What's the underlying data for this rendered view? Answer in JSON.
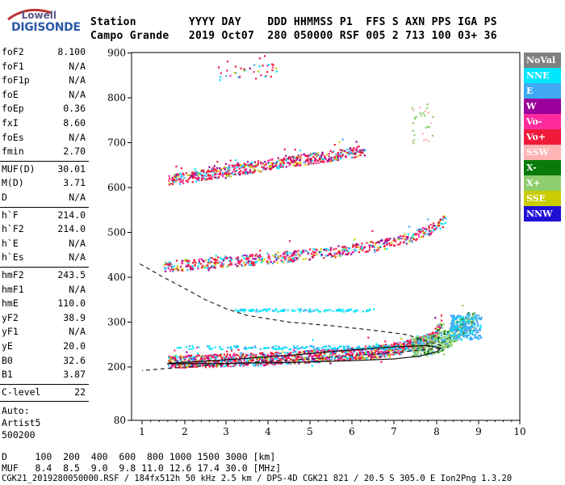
{
  "logo": {
    "brand": "Lowell",
    "product": "DIGISONDE"
  },
  "header": {
    "line1": "Station        YYYY DAY    DDD HHMMSS P1  FFS S AXN PPS IGA PS",
    "line2": "Campo Grande   2019 Oct07  280 050000 RSF 005 2 713 100 03+ 36"
  },
  "params": {
    "group1": [
      {
        "label": "foF2",
        "value": "8.100"
      },
      {
        "label": "foF1",
        "value": "N/A"
      },
      {
        "label": "foF1p",
        "value": "N/A"
      },
      {
        "label": "foE",
        "value": "N/A"
      },
      {
        "label": "foEp",
        "value": "0.36"
      },
      {
        "label": "fxI",
        "value": "8.60"
      },
      {
        "label": "foEs",
        "value": "N/A"
      },
      {
        "label": "fmin",
        "value": "2.70"
      }
    ],
    "group2": [
      {
        "label": "MUF(D)",
        "value": "30.01"
      },
      {
        "label": "M(D)",
        "value": "3.71"
      },
      {
        "label": "D",
        "value": "N/A"
      }
    ],
    "group3": [
      {
        "label": "h`F",
        "value": "214.0"
      },
      {
        "label": "h`F2",
        "value": "214.0"
      },
      {
        "label": "h`E",
        "value": "N/A"
      },
      {
        "label": "h`Es",
        "value": "N/A"
      }
    ],
    "group4": [
      {
        "label": "hmF2",
        "value": "243.5"
      },
      {
        "label": "hmF1",
        "value": "N/A"
      },
      {
        "label": "hmE",
        "value": "110.0"
      },
      {
        "label": "yF2",
        "value": "38.9"
      },
      {
        "label": "yF1",
        "value": "N/A"
      },
      {
        "label": "yE",
        "value": "20.0"
      },
      {
        "label": "B0",
        "value": "32.6"
      },
      {
        "label": "B1",
        "value": "3.87"
      }
    ],
    "clevel": {
      "label": "C-level",
      "value": "22"
    },
    "auto": [
      "Auto:",
      "Artist5",
      "500200"
    ]
  },
  "legend": [
    {
      "label": "NoVal",
      "bg": "#808080",
      "fg": "#ffffff"
    },
    {
      "label": "NNE",
      "bg": "#00e6ff",
      "fg": "#ffffff"
    },
    {
      "label": "E",
      "bg": "#3fa9f5",
      "fg": "#ffffff"
    },
    {
      "label": "W",
      "bg": "#9c009c",
      "fg": "#ffffff"
    },
    {
      "label": "Vo-",
      "bg": "#ff2a9d",
      "fg": "#ffffff"
    },
    {
      "label": "Vo+",
      "bg": "#f01b3a",
      "fg": "#ffffff"
    },
    {
      "label": "SSW",
      "bg": "#ffb3b3",
      "fg": "#ffffff"
    },
    {
      "label": "X-",
      "bg": "#0a7a0a",
      "fg": "#ffffff"
    },
    {
      "label": "X+",
      "bg": "#8fce6e",
      "fg": "#ffffff"
    },
    {
      "label": "SSE",
      "bg": "#c8cc00",
      "fg": "#ffffff"
    },
    {
      "label": "NNW",
      "bg": "#1f10d6",
      "fg": "#ffffff"
    }
  ],
  "chart_data": {
    "type": "scatter",
    "title": "",
    "xlabel": "",
    "ylabel": "",
    "x_ticks": [
      "1",
      "2",
      "3",
      "4",
      "5",
      "6",
      "7",
      "8",
      "9",
      "10"
    ],
    "y_ticks": [
      "80",
      "200",
      "300",
      "400",
      "500",
      "600",
      "700",
      "800",
      "900"
    ],
    "xlim": [
      0.85,
      10
    ],
    "ylim": [
      80,
      900
    ],
    "traces": [
      {
        "name": "F-trace O",
        "x": [
          1.6,
          2.5,
          3.5,
          4.5,
          5.5,
          6.5,
          7.2,
          7.6,
          7.9,
          8.05,
          8.1
        ],
        "y": [
          213,
          215,
          218,
          222,
          228,
          235,
          245,
          255,
          268,
          285,
          310
        ]
      },
      {
        "name": "F-trace multihop 2",
        "x": [
          1.5,
          2.5,
          3.5,
          4.5,
          5.5,
          6.5,
          7.2,
          7.8,
          8.2
        ],
        "y": [
          425,
          433,
          440,
          448,
          458,
          470,
          485,
          505,
          530
        ]
      },
      {
        "name": "F-trace multihop 3",
        "x": [
          1.6,
          2.5,
          3.5,
          4.5,
          5.5,
          6.3
        ],
        "y": [
          618,
          630,
          645,
          660,
          672,
          685
        ]
      },
      {
        "name": "F-trace X",
        "x": [
          7.4,
          7.8,
          8.1,
          8.3,
          8.5,
          8.7,
          8.9
        ],
        "y": [
          245,
          250,
          258,
          268,
          285,
          300,
          305
        ]
      }
    ],
    "profile_dashed": {
      "x": [
        0.95,
        1.5,
        2.0,
        2.5,
        3.0,
        3.5,
        4.5,
        5.5,
        6.5,
        7.3,
        8.1,
        8.1,
        7.0,
        6.0,
        5.0,
        4.0,
        3.0,
        2.0,
        1.0
      ],
      "y": [
        430,
        400,
        375,
        350,
        330,
        315,
        300,
        292,
        282,
        272,
        248,
        242,
        232,
        225,
        218,
        213,
        206,
        200,
        192
      ]
    },
    "profile_solid": {
      "x": [
        1.6,
        3.0,
        4.5,
        6.0,
        7.0,
        7.6,
        8.0,
        8.1,
        7.8,
        7.0,
        6.0,
        4.5,
        3.0,
        1.6
      ],
      "y": [
        207,
        208,
        210,
        214,
        218,
        224,
        234,
        242,
        248,
        245,
        238,
        226,
        216,
        208
      ]
    }
  },
  "footer": {
    "d_line": "D     100  200  400  600  800 1000 1500 3000 [km]",
    "muf_line": "MUF   8.4  8.5  9.0  9.8 11.0 12.6 17.4 30.0 [MHz]",
    "file_line": "CGK21_2019280050000.RSF / 184fx512h 50 kHz 2.5 km / DPS-4D CGK21 821 / 20.5 S 305.0 E Ion2Png 1.3.20"
  }
}
